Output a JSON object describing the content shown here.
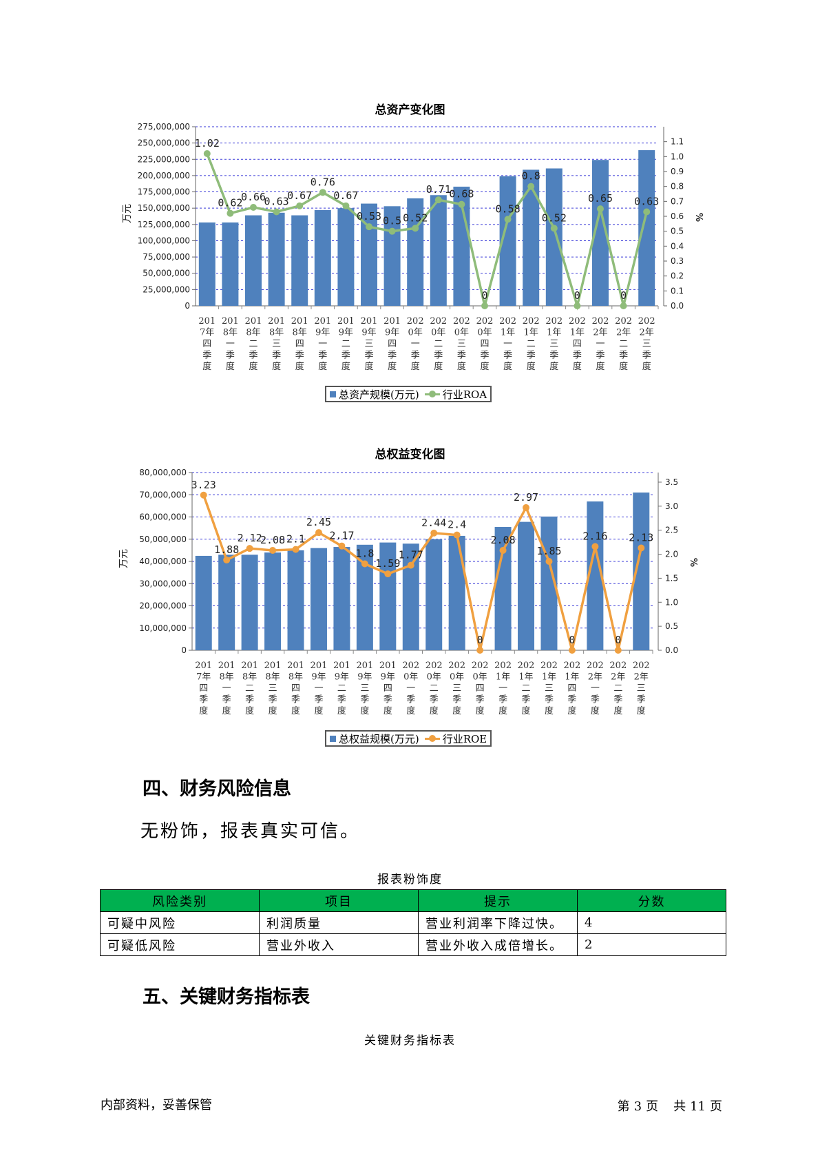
{
  "chart1": {
    "title": "总资产变化图",
    "legend_bar": "总资产规模(万元)",
    "legend_line": "行业ROA",
    "ylabel_left": "万元",
    "ylabel_right": "%",
    "y_ticks_left": [
      "0",
      "25,000,000",
      "50,000,000",
      "75,000,000",
      "100,000,000",
      "125,000,000",
      "150,000,000",
      "175,000,000",
      "200,000,000",
      "225,000,000",
      "250,000,000",
      "275,000,000"
    ],
    "y_ticks_right": [
      "0.0",
      "0.1",
      "0.2",
      "0.3",
      "0.4",
      "0.5",
      "0.6",
      "0.7",
      "0.8",
      "0.9",
      "1.0",
      "1.1"
    ]
  },
  "chart2": {
    "title": "总权益变化图",
    "legend_bar": "总权益规模(万元)",
    "legend_line": "行业ROE",
    "ylabel_left": "万元",
    "ylabel_right": "%",
    "y_ticks_left": [
      "0",
      "10,000,000",
      "20,000,000",
      "30,000,000",
      "40,000,000",
      "50,000,000",
      "60,000,000",
      "70,000,000",
      "80,000,000"
    ],
    "y_ticks_right": [
      "0.0",
      "0.5",
      "1.0",
      "1.5",
      "2.0",
      "2.5",
      "3.0",
      "3.5"
    ]
  },
  "chart_data": [
    {
      "type": "bar",
      "title": "总资产变化图",
      "categories": [
        "2017年四季度",
        "2018年一季度",
        "2018年二季度",
        "2018年三季度",
        "2018年四季度",
        "2019年一季度",
        "2019年二季度",
        "2019年三季度",
        "2019年四季度",
        "2020年一季度",
        "2020年二季度",
        "2020年三季度",
        "2020年四季度",
        "2021年一季度",
        "2021年二季度",
        "2021年三季度",
        "2021年四季度",
        "2022年一季度",
        "2022年二季度",
        "2022年三季度"
      ],
      "series": [
        {
          "name": "总资产规模(万元)",
          "axis": "left",
          "type": "bar",
          "values": [
            128000000,
            128000000,
            139000000,
            143000000,
            139000000,
            147000000,
            150000000,
            157000000,
            153000000,
            165000000,
            170000000,
            183000000,
            0,
            199000000,
            209000000,
            211000000,
            0,
            224000000,
            0,
            239000000
          ]
        },
        {
          "name": "行业ROA",
          "axis": "right",
          "type": "line",
          "values": [
            1.02,
            0.62,
            0.66,
            0.63,
            0.67,
            0.76,
            0.67,
            0.53,
            0.5,
            0.52,
            0.71,
            0.68,
            0,
            0.58,
            0.8,
            0.52,
            0,
            0.65,
            0,
            0.63
          ]
        }
      ],
      "ylim_left": [
        0,
        275000000
      ],
      "ylim_right": [
        0,
        1.2
      ],
      "xlabel": "",
      "ylabel": "万元",
      "y2label": "%",
      "grid": true,
      "legend": "bottom"
    },
    {
      "type": "bar",
      "title": "总权益变化图",
      "categories": [
        "2017年四季度",
        "2018年一季度",
        "2018年二季度",
        "2018年三季度",
        "2018年四季度",
        "2019年一季度",
        "2019年二季度",
        "2019年三季度",
        "2019年四季度",
        "2020年一季度",
        "2020年二季度",
        "2020年三季度",
        "2020年四季度",
        "2021年一季度",
        "2021年二季度",
        "2021年三季度",
        "2021年四季度",
        "2022年一季度",
        "2022年二季度",
        "2022年三季度"
      ],
      "series": [
        {
          "name": "总权益规模(万元)",
          "axis": "left",
          "type": "bar",
          "values": [
            42500000,
            43000000,
            43000000,
            44000000,
            45000000,
            46000000,
            46500000,
            47500000,
            48500000,
            48000000,
            50000000,
            51500000,
            0,
            55500000,
            57800000,
            60200000,
            0,
            67000000,
            0,
            71000000
          ]
        },
        {
          "name": "行业ROE",
          "axis": "right",
          "type": "line",
          "values": [
            3.23,
            1.88,
            2.12,
            2.08,
            2.1,
            2.45,
            2.17,
            1.8,
            1.59,
            1.77,
            2.44,
            2.4,
            0,
            2.08,
            2.97,
            1.85,
            0,
            2.16,
            0,
            2.13
          ]
        }
      ],
      "ylim_left": [
        0,
        80000000
      ],
      "ylim_right": [
        0,
        3.7
      ],
      "xlabel": "",
      "ylabel": "万元",
      "y2label": "%",
      "grid": true,
      "legend": "bottom"
    }
  ],
  "section4": {
    "heading": "四、财务风险信息",
    "text": "无粉饰，报表真实可信。",
    "table_caption": "报表粉饰度",
    "headers": [
      "风险类别",
      "项目",
      "提示",
      "分数"
    ],
    "rows": [
      [
        "可疑中风险",
        "利润质量",
        "营业利润率下降过快。",
        "4"
      ],
      [
        "可疑低风险",
        "营业外收入",
        "营业外收入成倍增长。",
        "2"
      ]
    ]
  },
  "section5": {
    "heading": "五、关键财务指标表",
    "table_caption": "关键财务指标表"
  },
  "footer": {
    "left": "内部资料，妥善保管",
    "page_prefix": "第",
    "page_number": "3",
    "page_unit": "页",
    "total_prefix": "共",
    "total_pages": "11",
    "total_unit": "页"
  },
  "colors": {
    "bar": "#4f81bd",
    "roa_line": "#8fbc7a",
    "roe_line": "#f0a040",
    "grid": "#4040e0",
    "header_green": "#00b050"
  }
}
